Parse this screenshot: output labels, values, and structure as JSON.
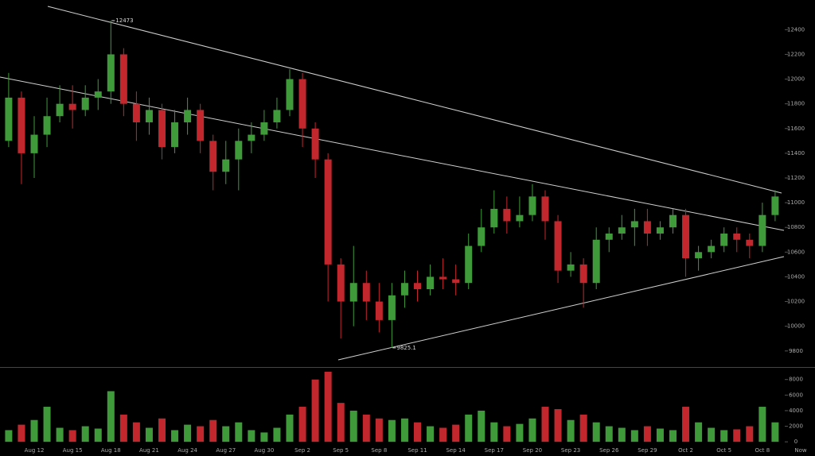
{
  "chart_data": {
    "type": "candlestick",
    "categories": [
      null,
      null,
      "Aug 12",
      null,
      null,
      "Aug 15",
      null,
      null,
      "Aug 18",
      null,
      null,
      "Aug 21",
      null,
      null,
      "Aug 24",
      null,
      null,
      "Aug 27",
      null,
      null,
      "Aug 30",
      null,
      null,
      "Sep 2",
      null,
      null,
      "Sep 5",
      null,
      null,
      "Sep 8",
      null,
      null,
      "Sep 11",
      null,
      null,
      "Sep 14",
      null,
      null,
      "Sep 17",
      null,
      null,
      "Sep 20",
      null,
      null,
      "Sep 23",
      null,
      null,
      "Sep 26",
      null,
      null,
      "Sep 29",
      null,
      null,
      "Oct 2",
      null,
      null,
      "Oct 5",
      null,
      null,
      "Oct 8",
      null,
      null,
      "Now"
    ],
    "open": [
      11500,
      11850,
      11400,
      11550,
      11700,
      11800,
      11750,
      11850,
      11900,
      12200,
      11800,
      11650,
      11750,
      11450,
      11650,
      11750,
      11500,
      11250,
      11350,
      11500,
      11550,
      11650,
      11750,
      12000,
      11600,
      11350,
      10500,
      10200,
      10350,
      10200,
      10050,
      10250,
      10350,
      10300,
      10400,
      10380,
      10350,
      10650,
      10800,
      10950,
      10850,
      10900,
      11050,
      10850,
      10450,
      10500,
      10350,
      10700,
      10750,
      10800,
      10850,
      10750,
      10800,
      10900,
      10550,
      10600,
      10650,
      10750,
      10700,
      10650,
      10900,
      null,
      null
    ],
    "high": [
      12050,
      11900,
      11700,
      11850,
      11950,
      11950,
      11950,
      12000,
      12473,
      12250,
      11900,
      11850,
      11800,
      11750,
      11850,
      11800,
      11550,
      11500,
      11600,
      11650,
      11750,
      11850,
      12080,
      12050,
      11650,
      11400,
      10550,
      10650,
      10450,
      10350,
      10350,
      10450,
      10450,
      10500,
      10550,
      10500,
      10750,
      10950,
      11100,
      11050,
      11050,
      11150,
      11100,
      10900,
      10600,
      10550,
      10800,
      10800,
      10900,
      10950,
      10950,
      10850,
      10950,
      10950,
      10650,
      10700,
      10800,
      10800,
      10750,
      11000,
      11100,
      null,
      null
    ],
    "low": [
      11450,
      11150,
      11200,
      11450,
      11650,
      11600,
      11700,
      11750,
      11800,
      11700,
      11500,
      11550,
      11350,
      11400,
      11550,
      11400,
      11100,
      11150,
      11100,
      11400,
      11500,
      11600,
      11700,
      11450,
      11200,
      10200,
      9900,
      10000,
      10050,
      9950,
      9825.1,
      10150,
      10200,
      10250,
      10300,
      10250,
      10300,
      10600,
      10750,
      10750,
      10800,
      10850,
      10700,
      10350,
      10400,
      10150,
      10300,
      10600,
      10700,
      10650,
      10650,
      10700,
      10750,
      10400,
      10450,
      10550,
      10600,
      10600,
      10550,
      10600,
      10850,
      null,
      null
    ],
    "close": [
      11850,
      11400,
      11550,
      11700,
      11800,
      11750,
      11850,
      11900,
      12200,
      11800,
      11650,
      11750,
      11450,
      11650,
      11750,
      11500,
      11250,
      11350,
      11500,
      11550,
      11650,
      11750,
      12000,
      11600,
      11350,
      10500,
      10200,
      10350,
      10200,
      10050,
      10250,
      10350,
      10300,
      10400,
      10380,
      10350,
      10650,
      10800,
      10950,
      10850,
      10900,
      11050,
      10850,
      10450,
      10500,
      10350,
      10700,
      10750,
      10800,
      10850,
      10750,
      10800,
      10900,
      10550,
      10600,
      10650,
      10750,
      10700,
      10650,
      10900,
      11050,
      null,
      null
    ],
    "volume": [
      1500,
      2200,
      2800,
      4500,
      1800,
      1500,
      2000,
      1700,
      6500,
      3500,
      2500,
      1800,
      3000,
      1500,
      2200,
      2000,
      2800,
      2000,
      2500,
      1500,
      1200,
      1800,
      3500,
      4500,
      8000,
      9000,
      5000,
      4000,
      3500,
      3000,
      2800,
      3000,
      2500,
      2000,
      1800,
      2200,
      3500,
      4000,
      2500,
      2000,
      2300,
      3000,
      4500,
      4200,
      2800,
      3500,
      2500,
      2000,
      1800,
      1500,
      2000,
      1700,
      1500,
      4500,
      2500,
      1800,
      1500,
      1600,
      2000,
      4500,
      2500,
      null,
      null
    ],
    "up_color": "#3f9a3a",
    "down_color": "#c1272d",
    "ylim": [
      9670,
      12640
    ],
    "yticks": [
      9800,
      10000,
      10200,
      10400,
      10600,
      10800,
      11000,
      11200,
      11400,
      11600,
      11800,
      12000,
      12200,
      12400
    ],
    "volume_ylim": [
      -800,
      9400
    ],
    "volume_yticks": [
      0,
      2000,
      4000,
      6000,
      8000
    ]
  }
}
